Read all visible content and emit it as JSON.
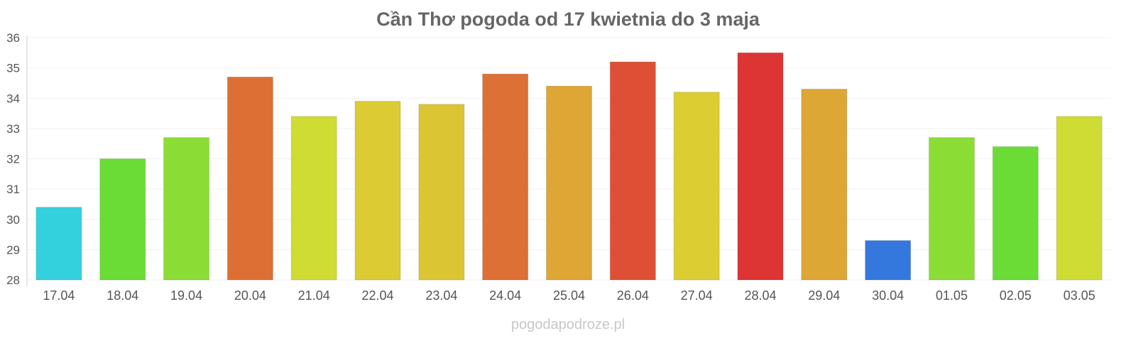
{
  "chart_data": {
    "type": "bar",
    "title": "Cần Thơ pogoda od 17 kwietnia do 3 maja",
    "xlabel": "",
    "ylabel": "",
    "ylim": [
      28,
      36
    ],
    "yticks": [
      "28",
      "29",
      "30",
      "31",
      "32",
      "33",
      "34",
      "35",
      "36"
    ],
    "grid": true,
    "categories": [
      "17.04",
      "18.04",
      "19.04",
      "20.04",
      "21.04",
      "22.04",
      "23.04",
      "24.04",
      "25.04",
      "26.04",
      "27.04",
      "28.04",
      "29.04",
      "30.04",
      "01.05",
      "02.05",
      "03.05"
    ],
    "values": [
      30.4,
      32.0,
      32.7,
      34.7,
      33.4,
      33.9,
      33.8,
      34.8,
      34.4,
      35.2,
      34.2,
      35.5,
      34.3,
      29.3,
      32.7,
      32.4,
      33.4
    ],
    "colors": [
      "#33d1de",
      "#6bdc36",
      "#8cdc36",
      "#dd6f35",
      "#cfdc33",
      "#dccb33",
      "#dcc533",
      "#dd7035",
      "#dda635",
      "#dd5035",
      "#dccd33",
      "#dd3434",
      "#dda735",
      "#3578dd",
      "#8cdc36",
      "#6bdc36",
      "#cfdc33"
    ]
  },
  "watermark": "pogodapodroze.pl"
}
